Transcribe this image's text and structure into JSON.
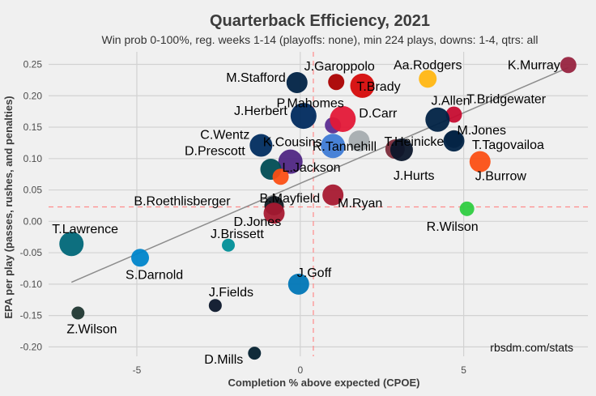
{
  "chart_data": {
    "type": "scatter",
    "title": "Quarterback Efficiency, 2021",
    "subtitle": "Win prob 0-100%, reg. weeks 1-14 (playoffs: none), min 224 plays, downs: 1-4, qtrs: all",
    "xlabel": "Completion % above expected (CPOE)",
    "ylabel": "EPA per play (passes, rushes, and penalties)",
    "caption": "rbsdm.com/stats",
    "xlim": [
      -7.7,
      8.8
    ],
    "ylim": [
      -0.215,
      0.27
    ],
    "x_ticks": [
      -5,
      0,
      5
    ],
    "y_ticks": [
      -0.2,
      -0.15,
      -0.1,
      -0.05,
      0.0,
      0.05,
      0.1,
      0.15,
      0.2,
      0.25
    ],
    "x_tick_labels": [
      "-5",
      "0",
      "5"
    ],
    "y_tick_labels": [
      "-0.20",
      "-0.15",
      "-0.10",
      "-0.05",
      "0.00",
      "0.05",
      "0.10",
      "0.15",
      "0.20",
      "0.25"
    ],
    "grid": true,
    "mean_x": 0.4,
    "mean_y": 0.023,
    "trend_line": {
      "x": [
        -7.0,
        8.2
      ],
      "y": [
        -0.097,
        0.245
      ]
    },
    "points": [
      {
        "label": "K.Murray",
        "x": 8.2,
        "y": 0.249,
        "r": 10,
        "color": "#97233f"
      },
      {
        "label": "Aa.Rodgers",
        "x": 3.9,
        "y": 0.227,
        "r": 11,
        "color": "#ffb612"
      },
      {
        "label": "J.Garoppolo",
        "x": 1.1,
        "y": 0.222,
        "r": 10,
        "color": "#aa0000"
      },
      {
        "label": "T.Brady",
        "x": 1.9,
        "y": 0.216,
        "r": 15,
        "color": "#d50a0a"
      },
      {
        "label": "M.Stafford",
        "x": -0.1,
        "y": 0.221,
        "r": 13,
        "color": "#002244"
      },
      {
        "label": "J.Allen",
        "x": 4.7,
        "y": 0.17,
        "r": 10,
        "color": "#c60c30"
      },
      {
        "label": "T.Bridgewater",
        "x": 4.2,
        "y": 0.162,
        "r": 15,
        "color": "#002244"
      },
      {
        "label": "J.Herbert",
        "x": 0.1,
        "y": 0.168,
        "r": 16,
        "color": "#002a5e"
      },
      {
        "label": "P.Mahomes",
        "x": 1.0,
        "y": 0.153,
        "r": 10,
        "color": "#5c2d91"
      },
      {
        "label": "D.Carr",
        "x": 1.3,
        "y": 0.163,
        "r": 16,
        "color": "#e31837"
      },
      {
        "label": "M.Jones",
        "x": 4.7,
        "y": 0.131,
        "r": 11,
        "color": "#4f4f4f"
      },
      {
        "label": "T.Heinicke",
        "x": 4.7,
        "y": 0.128,
        "r": 13,
        "color": "#002244"
      },
      {
        "label": "C.Wentz",
        "x": -1.2,
        "y": 0.121,
        "r": 14,
        "color": "#002c5f"
      },
      {
        "label": "K.Cousins",
        "x": 1.0,
        "y": 0.12,
        "r": 15,
        "color": "#3e7bd5"
      },
      {
        "label": "R.Tannehill",
        "x": 1.8,
        "y": 0.128,
        "r": 13,
        "color": "#a5acaf"
      },
      {
        "label": "J.Hurts",
        "x": 2.9,
        "y": 0.115,
        "r": 12,
        "color": "#7b2b3a"
      },
      {
        "label": "T.Tagovailoa",
        "x": 3.1,
        "y": 0.114,
        "r": 14,
        "color": "#0b162a"
      },
      {
        "label": "J.Burrow",
        "x": 5.5,
        "y": 0.095,
        "r": 13,
        "color": "#fb4f14"
      },
      {
        "label": "D.Prescott",
        "x": -0.3,
        "y": 0.095,
        "r": 15,
        "color": "#4f2683"
      },
      {
        "label": "L.Jackson",
        "x": -0.9,
        "y": 0.083,
        "r": 13,
        "color": "#004c54"
      },
      {
        "label": "B.Roethlisberger",
        "x": -0.6,
        "y": 0.071,
        "r": 10,
        "color": "#fb4f14"
      },
      {
        "label": "B.Mayfield",
        "x": -0.8,
        "y": 0.025,
        "r": 12,
        "color": "#101820"
      },
      {
        "label": "M.Ryan",
        "x": 1.0,
        "y": 0.042,
        "r": 13,
        "color": "#a71930"
      },
      {
        "label": "D.Jones",
        "x": -0.8,
        "y": 0.013,
        "r": 13,
        "color": "#a71930"
      },
      {
        "label": "R.Wilson",
        "x": 5.1,
        "y": 0.02,
        "r": 9,
        "color": "#2ecc40"
      },
      {
        "label": "T.Lawrence",
        "x": -7.0,
        "y": -0.036,
        "r": 15,
        "color": "#006778"
      },
      {
        "label": "J.Brissett",
        "x": -2.2,
        "y": -0.038,
        "r": 8,
        "color": "#008e97"
      },
      {
        "label": "S.Darnold",
        "x": -4.9,
        "y": -0.058,
        "r": 11,
        "color": "#0085ca"
      },
      {
        "label": "J.Goff",
        "x": -0.05,
        "y": -0.1,
        "r": 13,
        "color": "#0076b6"
      },
      {
        "label": "J.Fields",
        "x": -2.6,
        "y": -0.134,
        "r": 8,
        "color": "#0b162a"
      },
      {
        "label": "Z.Wilson",
        "x": -6.8,
        "y": -0.146,
        "r": 8,
        "color": "#203731"
      },
      {
        "label": "D.Mills",
        "x": -1.4,
        "y": -0.21,
        "r": 8,
        "color": "#03202f"
      }
    ]
  }
}
